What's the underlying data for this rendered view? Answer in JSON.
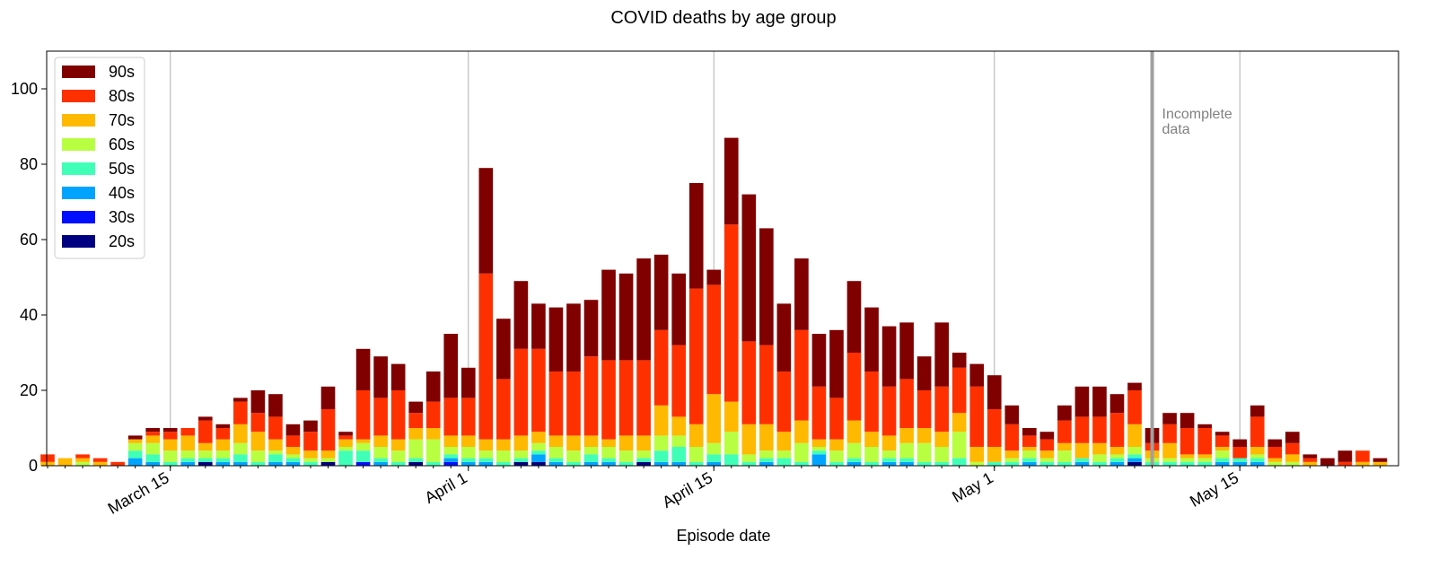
{
  "chart_data": {
    "type": "bar",
    "stacked": true,
    "title": "COVID deaths by age group",
    "xlabel": "Episode date",
    "ylabel": "",
    "ylim": [
      0,
      110
    ],
    "yticks": [
      0,
      20,
      40,
      60,
      80,
      100
    ],
    "grid": "x-major vertical lines",
    "legend_position": "upper-left",
    "x_start": "2020-03-08",
    "x_end": "2020-05-24",
    "x": [
      "2020-03-08",
      "2020-03-09",
      "2020-03-10",
      "2020-03-11",
      "2020-03-12",
      "2020-03-13",
      "2020-03-14",
      "2020-03-15",
      "2020-03-16",
      "2020-03-17",
      "2020-03-18",
      "2020-03-19",
      "2020-03-20",
      "2020-03-21",
      "2020-03-22",
      "2020-03-23",
      "2020-03-24",
      "2020-03-25",
      "2020-03-26",
      "2020-03-27",
      "2020-03-28",
      "2020-03-29",
      "2020-03-30",
      "2020-03-31",
      "2020-04-01",
      "2020-04-02",
      "2020-04-03",
      "2020-04-04",
      "2020-04-05",
      "2020-04-06",
      "2020-04-07",
      "2020-04-08",
      "2020-04-09",
      "2020-04-10",
      "2020-04-11",
      "2020-04-12",
      "2020-04-13",
      "2020-04-14",
      "2020-04-15",
      "2020-04-16",
      "2020-04-17",
      "2020-04-18",
      "2020-04-19",
      "2020-04-20",
      "2020-04-21",
      "2020-04-22",
      "2020-04-23",
      "2020-04-24",
      "2020-04-25",
      "2020-04-26",
      "2020-04-27",
      "2020-04-28",
      "2020-04-29",
      "2020-04-30",
      "2020-05-01",
      "2020-05-02",
      "2020-05-03",
      "2020-05-04",
      "2020-05-05",
      "2020-05-06",
      "2020-05-07",
      "2020-05-08",
      "2020-05-09",
      "2020-05-10",
      "2020-05-11",
      "2020-05-12",
      "2020-05-13",
      "2020-05-14",
      "2020-05-15",
      "2020-05-16",
      "2020-05-17",
      "2020-05-18",
      "2020-05-19",
      "2020-05-20",
      "2020-05-21",
      "2020-05-22",
      "2020-05-23"
    ],
    "x_ticks": [
      {
        "date": "2020-03-15",
        "label": "March 15"
      },
      {
        "date": "2020-04-01",
        "label": "April 1"
      },
      {
        "date": "2020-04-15",
        "label": "April 15"
      },
      {
        "date": "2020-05-01",
        "label": "May 1"
      },
      {
        "date": "2020-05-15",
        "label": "May 15"
      }
    ],
    "series": [
      {
        "name": "20s",
        "color": "#000080",
        "values": [
          0,
          0,
          0,
          0,
          0,
          0,
          0,
          0,
          0,
          1,
          0,
          0,
          0,
          0,
          0,
          0,
          1,
          0,
          0,
          0,
          0,
          1,
          0,
          0,
          0,
          0,
          0,
          1,
          1,
          0,
          0,
          0,
          0,
          0,
          1,
          0,
          0,
          0,
          0,
          0,
          0,
          0,
          0,
          0,
          0,
          0,
          0,
          0,
          0,
          0,
          0,
          0,
          0,
          0,
          0,
          0,
          0,
          0,
          0,
          0,
          0,
          0,
          1,
          0,
          0,
          0,
          0,
          0,
          0,
          0,
          0,
          0,
          0,
          0,
          0,
          0,
          0
        ]
      },
      {
        "name": "30s",
        "color": "#0010ff",
        "values": [
          0,
          0,
          0,
          0,
          0,
          0,
          0,
          0,
          0,
          0,
          0,
          0,
          0,
          0,
          0,
          0,
          0,
          0,
          1,
          0,
          0,
          0,
          0,
          1,
          0,
          0,
          0,
          0,
          0,
          0,
          0,
          0,
          0,
          0,
          0,
          0,
          0,
          0,
          0,
          0,
          0,
          0,
          0,
          0,
          0,
          0,
          0,
          0,
          0,
          0,
          0,
          0,
          0,
          0,
          0,
          0,
          0,
          0,
          0,
          0,
          0,
          0,
          0,
          0,
          0,
          0,
          0,
          0,
          0,
          0,
          0,
          0,
          0,
          0,
          0,
          0,
          0
        ]
      },
      {
        "name": "40s",
        "color": "#00a4ff",
        "values": [
          0,
          0,
          0,
          0,
          0,
          2,
          1,
          0,
          1,
          0,
          1,
          1,
          0,
          1,
          1,
          0,
          0,
          0,
          0,
          1,
          0,
          0,
          0,
          1,
          1,
          1,
          0,
          0,
          2,
          1,
          0,
          1,
          1,
          0,
          0,
          1,
          1,
          0,
          1,
          0,
          0,
          1,
          0,
          0,
          3,
          0,
          1,
          0,
          1,
          1,
          0,
          0,
          0,
          0,
          0,
          0,
          1,
          0,
          0,
          1,
          0,
          1,
          1,
          0,
          0,
          0,
          0,
          1,
          1,
          1,
          0,
          0,
          0,
          0,
          0,
          0,
          0
        ]
      },
      {
        "name": "50s",
        "color": "#40ffb7",
        "values": [
          0,
          0,
          0,
          0,
          0,
          2,
          2,
          1,
          1,
          1,
          1,
          2,
          1,
          2,
          1,
          1,
          0,
          4,
          3,
          1,
          1,
          1,
          1,
          1,
          1,
          1,
          1,
          1,
          1,
          1,
          1,
          2,
          1,
          1,
          1,
          3,
          4,
          1,
          2,
          3,
          1,
          1,
          2,
          1,
          1,
          1,
          1,
          1,
          1,
          1,
          1,
          1,
          2,
          0,
          1,
          1,
          1,
          1,
          1,
          1,
          1,
          1,
          1,
          1,
          1,
          1,
          1,
          1,
          1,
          1,
          0,
          0,
          0,
          0,
          0,
          0,
          0
        ]
      },
      {
        "name": "60s",
        "color": "#b7ff40",
        "values": [
          0,
          0,
          1,
          0,
          0,
          2,
          3,
          3,
          2,
          2,
          2,
          3,
          3,
          1,
          1,
          1,
          1,
          1,
          2,
          3,
          3,
          5,
          6,
          2,
          3,
          2,
          3,
          2,
          2,
          3,
          3,
          2,
          3,
          3,
          2,
          4,
          3,
          4,
          3,
          6,
          2,
          2,
          2,
          5,
          1,
          3,
          4,
          4,
          2,
          4,
          5,
          4,
          7,
          1,
          0,
          1,
          2,
          1,
          3,
          0,
          2,
          1,
          2,
          1,
          1,
          1,
          1,
          2,
          0,
          1,
          1,
          1,
          0,
          0,
          0,
          0,
          0
        ]
      },
      {
        "name": "70s",
        "color": "#ffb900",
        "values": [
          1,
          2,
          1,
          1,
          0,
          1,
          2,
          3,
          4,
          2,
          3,
          5,
          5,
          3,
          2,
          2,
          2,
          2,
          1,
          3,
          3,
          3,
          3,
          3,
          3,
          3,
          3,
          4,
          3,
          3,
          4,
          3,
          2,
          4,
          4,
          8,
          5,
          6,
          13,
          8,
          8,
          7,
          5,
          6,
          2,
          3,
          6,
          4,
          4,
          4,
          4,
          4,
          5,
          4,
          4,
          2,
          1,
          2,
          2,
          4,
          3,
          2,
          6,
          2,
          4,
          1,
          1,
          1,
          0,
          2,
          1,
          2,
          1,
          0,
          0,
          1,
          1
        ]
      },
      {
        "name": "80s",
        "color": "#ff3000",
        "values": [
          2,
          0,
          1,
          1,
          1,
          0,
          1,
          2,
          2,
          6,
          3,
          6,
          5,
          6,
          3,
          5,
          11,
          1,
          13,
          10,
          13,
          4,
          7,
          10,
          10,
          44,
          16,
          23,
          22,
          17,
          17,
          21,
          21,
          20,
          20,
          20,
          19,
          36,
          29,
          47,
          22,
          21,
          16,
          24,
          14,
          11,
          18,
          16,
          13,
          13,
          10,
          12,
          12,
          16,
          10,
          7,
          3,
          3,
          6,
          7,
          7,
          9,
          9,
          2,
          5,
          7,
          7,
          3,
          3,
          8,
          3,
          3,
          1,
          0,
          1,
          3,
          0
        ]
      },
      {
        "name": "90s",
        "color": "#800000",
        "values": [
          0,
          0,
          0,
          0,
          0,
          1,
          1,
          1,
          0,
          1,
          1,
          1,
          6,
          6,
          3,
          3,
          6,
          1,
          11,
          11,
          7,
          3,
          8,
          17,
          8,
          28,
          16,
          18,
          12,
          17,
          18,
          15,
          24,
          23,
          27,
          20,
          19,
          28,
          4,
          23,
          39,
          31,
          18,
          19,
          14,
          18,
          19,
          17,
          16,
          15,
          9,
          17,
          4,
          6,
          9,
          5,
          2,
          2,
          4,
          8,
          8,
          5,
          2,
          4,
          3,
          4,
          1,
          1,
          2,
          3,
          2,
          3,
          1,
          2,
          3,
          0,
          1
        ]
      }
    ],
    "annotations": [
      {
        "date": "2020-05-10",
        "line1": "Incomplete",
        "line2": "data"
      }
    ]
  }
}
